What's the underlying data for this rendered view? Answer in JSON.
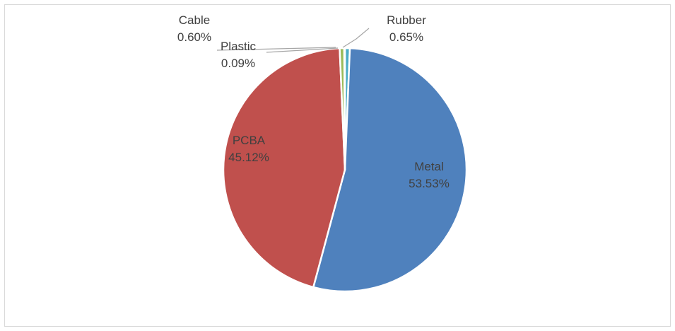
{
  "chart_data": {
    "type": "pie",
    "title": "",
    "legend": "none",
    "start_angle_deg": 0,
    "direction": "clockwise",
    "slices": [
      {
        "name": "Rubber",
        "value": 0.65,
        "label": "0.65%",
        "color": "#4bacc6"
      },
      {
        "name": "Metal",
        "value": 53.53,
        "label": "53.53%",
        "color": "#4f81bd"
      },
      {
        "name": "PCBA",
        "value": 45.12,
        "label": "45.12%",
        "color": "#c0504d"
      },
      {
        "name": "Cable",
        "value": 0.6,
        "label": "0.60%",
        "color": "#9bbb59"
      },
      {
        "name": "Plastic",
        "value": 0.09,
        "label": "0.09%",
        "color": "#8064a2"
      }
    ]
  }
}
